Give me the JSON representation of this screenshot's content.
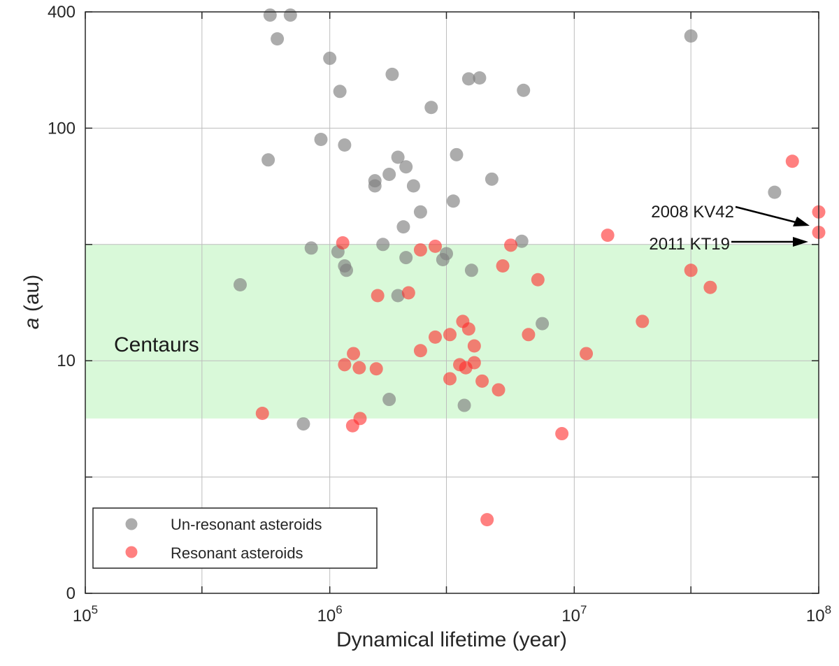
{
  "chart_data": {
    "type": "scatter",
    "title": "",
    "xlabel": "Dynamical lifetime (year)",
    "ylabel_italic": "a",
    "ylabel_rest": " (au)",
    "x_scale": "log",
    "xlim": [
      100000,
      100000000
    ],
    "x_ticks": [
      {
        "value": 100000,
        "base": "10",
        "exp": "5"
      },
      {
        "value": 1000000,
        "base": "10",
        "exp": "6"
      },
      {
        "value": 10000000,
        "base": "10",
        "exp": "7"
      },
      {
        "value": 100000000,
        "base": "10",
        "exp": "8"
      }
    ],
    "x_minor_gridlines": [
      300000,
      3000000,
      30000000
    ],
    "y_scale": "piecewise (irregular; tick labels only at 0, 10, 100, 400)",
    "y_ticks": [
      {
        "value": 0,
        "label": "0"
      },
      {
        "value": 10,
        "label": "10"
      },
      {
        "value": 100,
        "label": "100"
      },
      {
        "value": 400,
        "label": "400"
      }
    ],
    "y_unlabeled_gridlines": [
      3,
      30
    ],
    "y_map": [
      [
        0,
        0
      ],
      [
        3,
        1
      ],
      [
        10,
        2
      ],
      [
        30,
        3
      ],
      [
        100,
        4
      ],
      [
        400,
        5
      ]
    ],
    "grid": true,
    "legend_position": "bottom-left",
    "region": {
      "label": "Centaurs",
      "y_from": 5.5,
      "y_to": 30,
      "color": "#d9f9d9"
    },
    "series": [
      {
        "name": "Un-resonant asteroids",
        "color": "#808080",
        "opacity": 0.65,
        "points": [
          [
            570000,
            385
          ],
          [
            690000,
            385
          ],
          [
            610000,
            290
          ],
          [
            1000000,
            230
          ],
          [
            1800000,
            190
          ],
          [
            1100000,
            155
          ],
          [
            3700000,
            180
          ],
          [
            4100000,
            182
          ],
          [
            6200000,
            157
          ],
          [
            2600000,
            128
          ],
          [
            920000,
            89
          ],
          [
            1150000,
            84
          ],
          [
            560000,
            72
          ],
          [
            1900000,
            74
          ],
          [
            3300000,
            76
          ],
          [
            2050000,
            67
          ],
          [
            1750000,
            62
          ],
          [
            1530000,
            58
          ],
          [
            1530000,
            55
          ],
          [
            2200000,
            55
          ],
          [
            4600000,
            59
          ],
          [
            3200000,
            47
          ],
          [
            2350000,
            42
          ],
          [
            2000000,
            36
          ],
          [
            6100000,
            31
          ],
          [
            1650000,
            30
          ],
          [
            840000,
            29
          ],
          [
            1080000,
            28
          ],
          [
            2050000,
            26.5
          ],
          [
            2900000,
            26
          ],
          [
            3000000,
            27.5
          ],
          [
            1150000,
            24.5
          ],
          [
            1170000,
            23.5
          ],
          [
            3800000,
            23.5
          ],
          [
            430000,
            20.5
          ],
          [
            1900000,
            18.5
          ],
          [
            7400000,
            14.2
          ],
          [
            1750000,
            6.7
          ],
          [
            3550000,
            6.3
          ],
          [
            780000,
            5.2
          ],
          [
            66000000,
            51.5
          ],
          [
            30000000,
            300
          ]
        ]
      },
      {
        "name": "Resonant asteroids",
        "color": "#ff2b2b",
        "opacity": 0.6,
        "points": [
          [
            78000000,
            71
          ],
          [
            100000000,
            42
          ],
          [
            100000000,
            34
          ],
          [
            13700000,
            33
          ],
          [
            1130000,
            30.5
          ],
          [
            2350000,
            28.5
          ],
          [
            2700000,
            29.5
          ],
          [
            5500000,
            29.8
          ],
          [
            5100000,
            24.5
          ],
          [
            30000000,
            23.5
          ],
          [
            7100000,
            21.5
          ],
          [
            36000000,
            20
          ],
          [
            1570000,
            18.5
          ],
          [
            2100000,
            19
          ],
          [
            3500000,
            14.5
          ],
          [
            3700000,
            13.5
          ],
          [
            19000000,
            14.5
          ],
          [
            2700000,
            12.5
          ],
          [
            3100000,
            12.8
          ],
          [
            3900000,
            11.5
          ],
          [
            6500000,
            12.8
          ],
          [
            2350000,
            11
          ],
          [
            1250000,
            10.7
          ],
          [
            11200000,
            10.7
          ],
          [
            1150000,
            9.6
          ],
          [
            1320000,
            9.3
          ],
          [
            1550000,
            9.2
          ],
          [
            3400000,
            9.6
          ],
          [
            3600000,
            9.3
          ],
          [
            3900000,
            9.8
          ],
          [
            3100000,
            8.3
          ],
          [
            4200000,
            8.1
          ],
          [
            4900000,
            7.4
          ],
          [
            530000,
            5.8
          ],
          [
            1330000,
            5.5
          ],
          [
            1240000,
            5.1
          ],
          [
            8900000,
            4.7
          ],
          [
            4400000,
            1.9
          ]
        ]
      }
    ],
    "annotations": [
      {
        "text": "2008 KV42",
        "target_x": 100000000,
        "target_y": 42
      },
      {
        "text": "2011 KT19",
        "target_x": 100000000,
        "target_y": 34
      }
    ]
  }
}
